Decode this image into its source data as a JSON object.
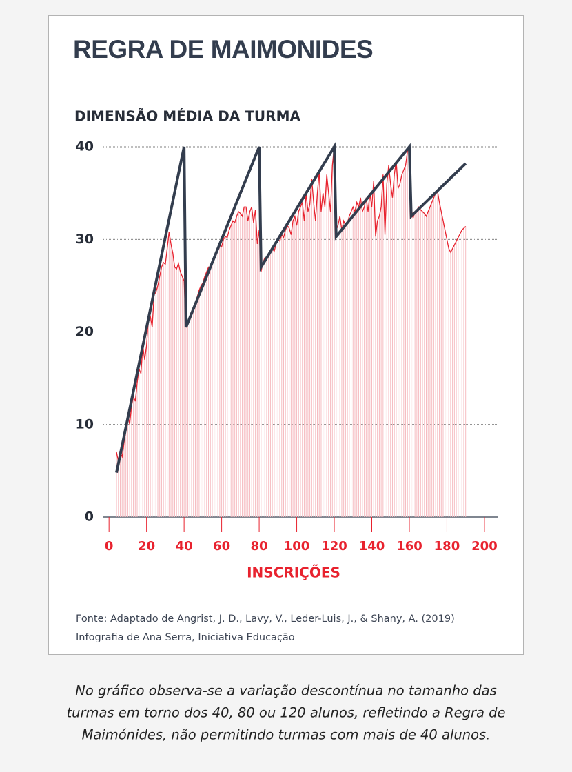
{
  "chart_data": {
    "type": "line",
    "title": "REGRA DE MAIMONIDES",
    "ylabel": "DIMENSÃO MÉDIA DA TURMA",
    "xlabel": "INSCRIÇÕES",
    "xlim": [
      -3,
      207
    ],
    "ylim": [
      0,
      40
    ],
    "xticks": [
      0,
      20,
      40,
      60,
      80,
      100,
      120,
      140,
      160,
      180,
      200
    ],
    "yticks": [
      0,
      10,
      20,
      30,
      40
    ],
    "grid": true,
    "series": [
      {
        "color": "#e8222e",
        "stem_color": "#f6bcc1",
        "stems": true,
        "x": [
          4,
          5,
          6,
          7,
          8,
          9,
          10,
          11,
          12,
          13,
          14,
          15,
          16,
          17,
          18,
          19,
          20,
          21,
          22,
          23,
          24,
          25,
          26,
          27,
          28,
          29,
          30,
          31,
          32,
          33,
          34,
          35,
          36,
          37,
          38,
          39,
          40,
          41,
          42,
          43,
          44,
          45,
          46,
          47,
          48,
          49,
          50,
          51,
          52,
          53,
          54,
          55,
          56,
          57,
          58,
          59,
          60,
          61,
          62,
          63,
          64,
          65,
          66,
          67,
          68,
          69,
          70,
          71,
          72,
          73,
          74,
          75,
          76,
          77,
          78,
          79,
          80,
          81,
          82,
          83,
          84,
          85,
          86,
          87,
          88,
          89,
          90,
          91,
          92,
          93,
          94,
          95,
          96,
          97,
          98,
          99,
          100,
          101,
          102,
          103,
          104,
          105,
          106,
          107,
          108,
          109,
          110,
          111,
          112,
          113,
          114,
          115,
          116,
          117,
          118,
          119,
          120,
          121,
          122,
          123,
          124,
          125,
          126,
          127,
          128,
          129,
          130,
          131,
          132,
          133,
          134,
          135,
          136,
          137,
          138,
          139,
          140,
          141,
          142,
          143,
          144,
          145,
          146,
          147,
          148,
          149,
          150,
          151,
          152,
          153,
          154,
          155,
          156,
          157,
          158,
          159,
          160,
          161,
          162,
          163,
          164,
          165,
          166,
          167,
          168,
          169,
          170,
          171,
          172,
          173,
          174,
          175,
          176,
          177,
          178,
          179,
          180,
          181,
          182,
          183,
          184,
          185,
          186,
          187,
          188,
          189,
          190
        ],
        "values": [
          7,
          6,
          7,
          6.5,
          8,
          9.5,
          11.2,
          10,
          12,
          13,
          12.5,
          14.5,
          16,
          15.5,
          18.5,
          17,
          18.5,
          21.5,
          21.7,
          20.5,
          24,
          24.3,
          25,
          26,
          27,
          27.5,
          27.3,
          29,
          30.8,
          29.5,
          28.5,
          27,
          26.8,
          27.4,
          26.5,
          26,
          25.5,
          20.5,
          21,
          21.5,
          22,
          22.5,
          23.2,
          23.8,
          24.5,
          25,
          25.3,
          26,
          26.5,
          27,
          26.8,
          27.5,
          28,
          28.3,
          28.8,
          29.4,
          29.2,
          30,
          30.3,
          30.2,
          31,
          31.5,
          32,
          31.8,
          32.5,
          33,
          32.8,
          32.5,
          33.5,
          33.5,
          32,
          33,
          33.5,
          31.8,
          33.2,
          29.5,
          31,
          26.5,
          27.5,
          28,
          27.8,
          28.3,
          28.8,
          29,
          28.7,
          29.5,
          30,
          29.8,
          30.5,
          30.2,
          31,
          31.5,
          31.2,
          30.5,
          32,
          32.5,
          31.5,
          33,
          33.5,
          34,
          32,
          35,
          33,
          33.8,
          36.5,
          34,
          32,
          35,
          37.3,
          33,
          35,
          33.5,
          37,
          35,
          33,
          38,
          40,
          31,
          31.5,
          32.5,
          31,
          32,
          31.5,
          31.8,
          32.5,
          33,
          33.5,
          33,
          34,
          33.5,
          34.5,
          33,
          33.5,
          34.5,
          33,
          35,
          33.5,
          36.3,
          30.3,
          32,
          32.5,
          33.5,
          37,
          30.5,
          36,
          38,
          36,
          34.5,
          37,
          38.5,
          35.5,
          36,
          37,
          37.5,
          38,
          39.5,
          40,
          33.5,
          32.3,
          33,
          33.2,
          33.5,
          33.2,
          33,
          32.8,
          32.5,
          33,
          33.5,
          34,
          34.5,
          35,
          35.2,
          34,
          33,
          32,
          31,
          30,
          29,
          28.6,
          29,
          29.4,
          29.8,
          30.2,
          30.6,
          31,
          31.2,
          31.4
        ]
      },
      {
        "color": "#333d4e",
        "x": [
          4,
          40,
          41,
          80,
          81,
          120,
          121,
          160,
          161,
          190
        ],
        "values": [
          4.8,
          40,
          20.5,
          40,
          27,
          40,
          30.3,
          40,
          32.5,
          38.2
        ]
      }
    ]
  },
  "source": [
    "Fonte: Adaptado de Angrist, J. D., Lavy, V., Leder-Luis, J., & Shany, A. (2019)",
    "Infografia de Ana Serra, Iniciativa Educação"
  ],
  "caption": [
    "No gráfico observa-se a variação descontínua no tamanho das",
    "turmas em torno dos 40, 80 ou 120 alunos, refletindo a Regra de",
    "Maimónides, não permitindo turmas com mais de 40 alunos."
  ]
}
